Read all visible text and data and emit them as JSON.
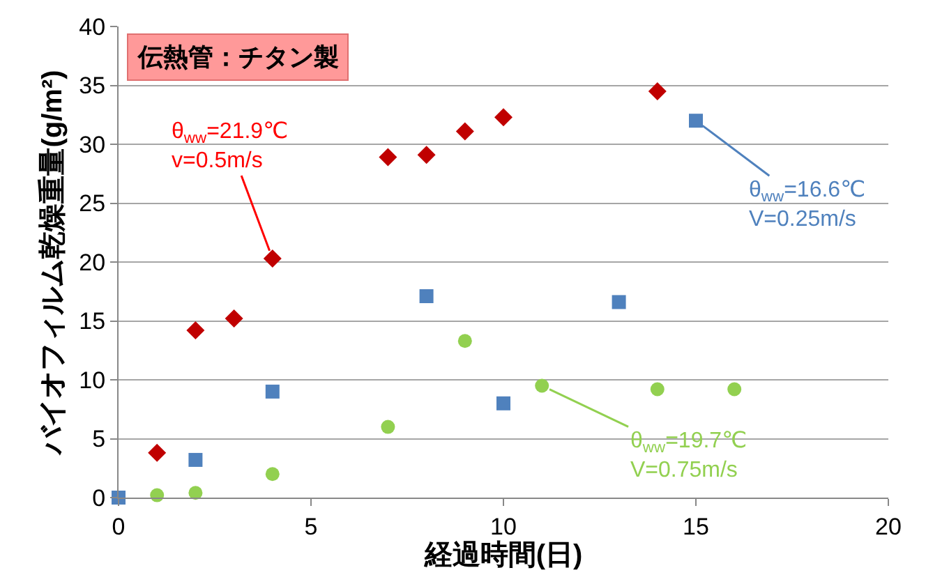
{
  "chart_data": {
    "type": "scatter",
    "xlabel": "経過時間(日)",
    "ylabel": "バイオフィルム乾燥重量(g/m²)",
    "xlim": [
      0,
      20
    ],
    "xticks": [
      0,
      5,
      10,
      15,
      20
    ],
    "ylim": [
      0,
      40
    ],
    "yticks": [
      0,
      5,
      10,
      15,
      20,
      25,
      30,
      35,
      40
    ],
    "grid": "y",
    "series": [
      {
        "color": "#c00000",
        "marker": "diamond",
        "x": [
          1,
          2,
          3,
          4,
          7,
          8,
          9,
          10,
          14
        ],
        "values": [
          3.8,
          14.2,
          15.2,
          20.3,
          28.9,
          29.1,
          31.1,
          32.3,
          34.5
        ]
      },
      {
        "color": "#92d050",
        "marker": "circle",
        "x": [
          1,
          2,
          4,
          7,
          9,
          11,
          14,
          16
        ],
        "values": [
          0.2,
          0.4,
          2,
          6,
          13.3,
          9.5,
          9.2,
          9.2
        ]
      },
      {
        "color": "#4f81bd",
        "marker": "square",
        "x": [
          0,
          2,
          4,
          8,
          10,
          13,
          15
        ],
        "values": [
          0,
          3.2,
          9,
          17.1,
          8,
          16.6,
          32
        ]
      }
    ],
    "annotations": [
      "伝熱管：チタン製",
      {
        "text": "θ$_{ww}$=21.9℃\nv=0.5m/s",
        "x": 4,
        "y": 20.3
      },
      {
        "text": "θ$_{ww}$=19.7℃\nV=0.75m/s",
        "x": 11,
        "y": 9.5
      },
      {
        "text": "θ$_{ww}$=16.6℃\nV=0.25m/s",
        "x": 15,
        "y": 32
      }
    ]
  }
}
